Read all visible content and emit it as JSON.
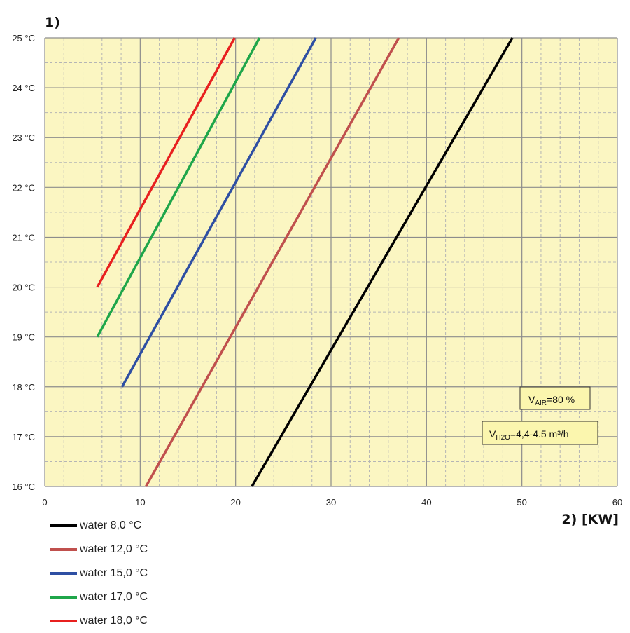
{
  "chart_data": {
    "type": "line",
    "title": "",
    "ylabel": "1)",
    "xlabel": "2)  [KW]",
    "xlim": [
      0,
      60
    ],
    "ylim": [
      16,
      25
    ],
    "x_ticks": [
      0,
      10,
      20,
      30,
      40,
      50,
      60
    ],
    "y_tick_labels": [
      "16 °C",
      "17 °C",
      "18 °C",
      "19 °C",
      "20 °C",
      "21 °C",
      "22 °C",
      "23 °C",
      "24 °C",
      "25 °C"
    ],
    "y_ticks": [
      16,
      17,
      18,
      19,
      20,
      21,
      22,
      23,
      24,
      25
    ],
    "grid": true,
    "plot_background": "#fbf6c2",
    "legend_position": "below-left",
    "series": [
      {
        "name": "water 8,0 °C",
        "color": "#000000",
        "x": [
          21.7,
          49.0
        ],
        "y": [
          16,
          25
        ]
      },
      {
        "name": "water 12,0 °C",
        "color": "#c0504d",
        "x": [
          10.6,
          37.1
        ],
        "y": [
          16,
          25
        ]
      },
      {
        "name": "water 15,0 °C",
        "color": "#2e4fa3",
        "x": [
          8.1,
          28.4
        ],
        "y": [
          18,
          25
        ]
      },
      {
        "name": "water 17,0 °C",
        "color": "#1fa64a",
        "x": [
          5.5,
          22.5
        ],
        "y": [
          19,
          25
        ]
      },
      {
        "name": "water 18,0 °C",
        "color": "#e8201f",
        "x": [
          5.5,
          19.9
        ],
        "y": [
          20,
          25
        ]
      }
    ],
    "annotations": [
      {
        "main": "V",
        "sub": "AIR",
        "rest": "=80 %"
      },
      {
        "main": "V",
        "sub": "H2O",
        "rest": "=4,4-4.5 m³/h"
      }
    ]
  }
}
